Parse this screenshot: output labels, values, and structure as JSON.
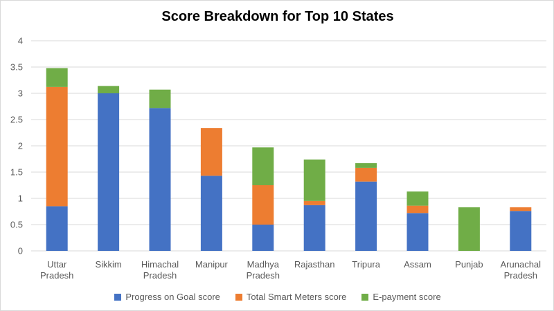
{
  "chart_data": {
    "type": "bar",
    "stacked": true,
    "title": "Score Breakdown for Top 10 States",
    "xlabel": "",
    "ylabel": "",
    "ylim": [
      0,
      4
    ],
    "yticks": [
      "0",
      "0.5",
      "1",
      "1.5",
      "2",
      "2.5",
      "3",
      "3.5",
      "4"
    ],
    "grid": true,
    "legend_position": "bottom",
    "categories": [
      [
        "Uttar",
        "Pradesh"
      ],
      [
        "Sikkim"
      ],
      [
        "Himachal",
        "Pradesh"
      ],
      [
        "Manipur"
      ],
      [
        "Madhya",
        "Pradesh"
      ],
      [
        "Rajasthan"
      ],
      [
        "Tripura"
      ],
      [
        "Assam"
      ],
      [
        "Punjab"
      ],
      [
        "Arunachal",
        "Pradesh"
      ]
    ],
    "series": [
      {
        "name": "Progress on Goal score",
        "color": "#4472c4",
        "values": [
          0.85,
          3.0,
          2.72,
          1.43,
          0.5,
          0.87,
          1.32,
          0.72,
          0,
          0.76
        ]
      },
      {
        "name": "Total Smart Meters score",
        "color": "#ed7d31",
        "values": [
          2.27,
          0,
          0,
          0.91,
          0.75,
          0.08,
          0.26,
          0.14,
          0,
          0.07
        ]
      },
      {
        "name": "E-payment score",
        "color": "#70ad47",
        "values": [
          0.36,
          0.14,
          0.35,
          0,
          0.72,
          0.79,
          0.09,
          0.27,
          0.83,
          0
        ]
      }
    ]
  }
}
